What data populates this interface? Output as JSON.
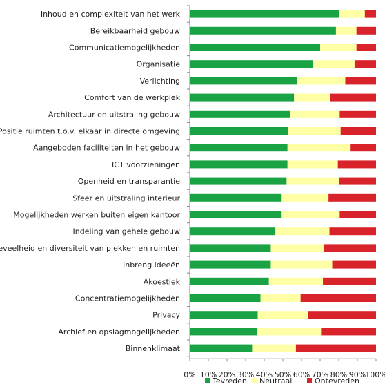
{
  "chart_data": {
    "type": "bar",
    "orientation": "horizontal",
    "stacked": true,
    "percent": true,
    "categories": [
      "Inhoud en complexiteit van het werk",
      "Bereikbaarheid gebouw",
      "Communicatiemogelijkheden",
      "Organisatie",
      "Verlichting",
      "Comfort van de werkplek",
      "Architectuur en uitstraling gebouw",
      "Positie ruimten t.o.v. elkaar in directe omgeving",
      "Aangeboden faciliteiten in het gebouw",
      "ICT voorzieningen",
      "Openheid en transparantie",
      "Sfeer en uitstraling interieur",
      "Mogelijkheden werken buiten eigen kantoor",
      "Indeling van gehele gebouw",
      "Hoeveelheid en diversiteit van plekken en ruimten",
      "Inbreng ideeën",
      "Akoestiek",
      "Concentratiemogelijkheden",
      "Privacy",
      "Archief en opslagmogelijkheden",
      "Binnenklimaat"
    ],
    "series": [
      {
        "name": "Tevreden",
        "color": "#1aa345",
        "values": [
          80,
          78.5,
          70,
          66,
          57.5,
          56,
          54,
          53,
          52.5,
          52.5,
          52,
          49,
          49,
          46,
          43.5,
          43.5,
          42.5,
          38,
          36.5,
          36,
          33.5
        ]
      },
      {
        "name": "Neutraal",
        "color": "#ffffa6",
        "values": [
          14,
          11,
          19.5,
          22.5,
          26,
          19.5,
          26.5,
          28,
          33.5,
          27,
          28,
          25.5,
          31.5,
          29,
          28.5,
          33,
          29,
          21.5,
          27,
          34.5,
          23.5
        ]
      },
      {
        "name": "Ontevreden",
        "color": "#d9232a",
        "values": [
          6,
          10.5,
          10.5,
          11.5,
          16.5,
          24.5,
          19.5,
          19,
          14,
          20.5,
          20,
          25.5,
          19.5,
          25,
          28,
          23.5,
          28.5,
          40.5,
          36.5,
          29.5,
          43
        ]
      }
    ],
    "x_ticks": [
      "0%",
      "10%",
      "20%",
      "30%",
      "40%",
      "50%",
      "60%",
      "70%",
      "80%",
      "90%",
      "100%"
    ],
    "xlim": [
      0,
      100
    ],
    "grid": false,
    "legend_position": "bottom"
  }
}
